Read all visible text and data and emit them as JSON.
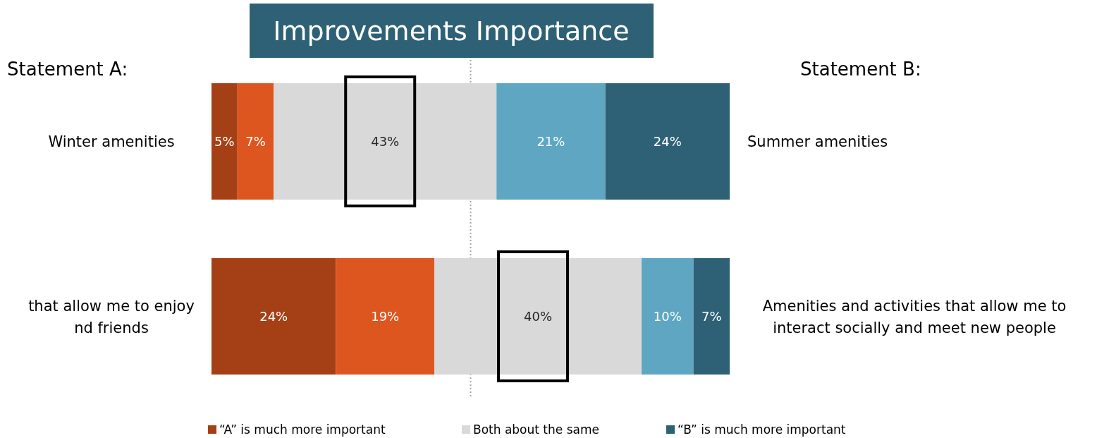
{
  "chart_data": {
    "type": "bar",
    "orientation": "horizontal",
    "stacked": true,
    "title": "Improvements Importance",
    "categories": [
      "Winter amenities",
      "that allow me to enjoy\nnd friends"
    ],
    "series": [
      {
        "name": "“A” is much more important",
        "color": "#a53f15",
        "values": [
          5,
          24
        ],
        "value_labels": [
          "5%",
          "24%"
        ]
      },
      {
        "color": "#de561f",
        "values": [
          7,
          19
        ],
        "value_labels": [
          "7%",
          "19%"
        ]
      },
      {
        "name": "Both about the same",
        "color": "#d9d9d9",
        "values": [
          43,
          40
        ],
        "value_labels": [
          "43%",
          "40%"
        ]
      },
      {
        "color": "#5ea6c1",
        "values": [
          21,
          10
        ],
        "value_labels": [
          "21%",
          "10%"
        ]
      },
      {
        "name": "“B” is much more important",
        "color": "#2e6176",
        "values": [
          24,
          7
        ],
        "value_labels": [
          "24%",
          "7%"
        ]
      }
    ],
    "xlim": [
      0,
      100
    ],
    "legend": "bottom",
    "ref_lines": [
      {
        "axis": "x",
        "value": 50,
        "color": "#a6a6a6",
        "line_style": "dotted"
      }
    ],
    "annotations": [
      "Statement A:",
      "Statement B:",
      "Summer amenities",
      "Amenities and activities that allow me to\ninteract socially and meet new people"
    ]
  }
}
